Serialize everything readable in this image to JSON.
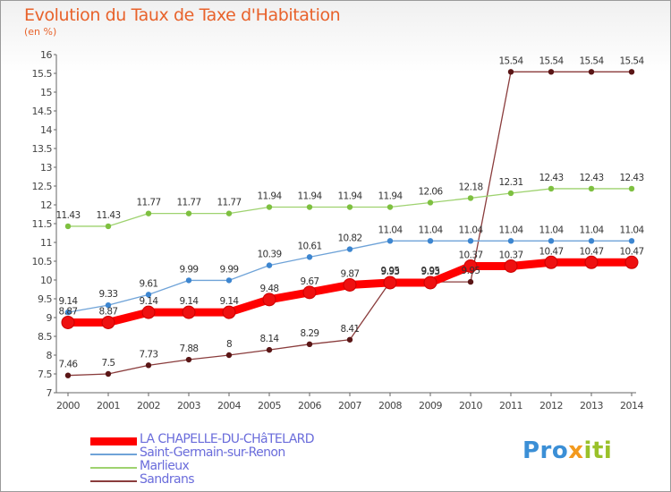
{
  "header": {
    "title": "Evolution du Taux de Taxe d'Habitation",
    "subtitle": "(en %)"
  },
  "brand": {
    "part1": "Pro",
    "part2": "x",
    "part3": "iti"
  },
  "chart_data": {
    "type": "line",
    "title": "Evolution du Taux de Taxe d'Habitation",
    "ylabel": "(en %)",
    "xlabel": "",
    "x": [
      2000,
      2001,
      2002,
      2003,
      2004,
      2005,
      2006,
      2007,
      2008,
      2009,
      2010,
      2011,
      2012,
      2013,
      2014
    ],
    "ylim": [
      7,
      16
    ],
    "yticks": [
      7,
      7.5,
      8,
      8.5,
      9,
      9.5,
      10,
      10.5,
      11,
      11.5,
      12,
      12.5,
      13,
      13.5,
      14,
      14.5,
      15,
      15.5,
      16
    ],
    "grid": false,
    "legend": "bottom-left",
    "series": [
      {
        "name": "LA CHAPELLE-DU-CHâTELARD",
        "color": "#ff0000",
        "marker": "#ee1010",
        "values": [
          8.87,
          8.87,
          9.14,
          9.14,
          9.14,
          9.48,
          9.67,
          9.87,
          9.93,
          9.93,
          10.37,
          10.37,
          10.47,
          10.47,
          10.47
        ],
        "labels": [
          "8.87",
          "8.87",
          "9.14",
          "9.14",
          "9.14",
          "9.48",
          "9.67",
          "9.87",
          "9.93",
          "9.93",
          "10.37",
          "10.37",
          "10.47",
          "10.47",
          "10.47"
        ]
      },
      {
        "name": "Saint-Germain-sur-Renon",
        "color": "#6fa3d8",
        "marker": "#3d86d0",
        "values": [
          9.14,
          9.33,
          9.61,
          9.99,
          9.99,
          10.39,
          10.61,
          10.82,
          11.04,
          11.04,
          11.04,
          11.04,
          11.04,
          11.04,
          11.04
        ],
        "labels": [
          "9.14",
          "9.33",
          "9.61",
          "9.99",
          "9.99",
          "10.39",
          "10.61",
          "10.82",
          "11.04",
          "11.04",
          "11.04",
          "11.04",
          "11.04",
          "11.04",
          "11.04"
        ]
      },
      {
        "name": "Marlieux",
        "color": "#9ed26f",
        "marker": "#7ec040",
        "values": [
          11.43,
          11.43,
          11.77,
          11.77,
          11.77,
          11.94,
          11.94,
          11.94,
          11.94,
          12.06,
          12.18,
          12.31,
          12.43,
          12.43,
          12.43
        ],
        "labels": [
          "11.43",
          "11.43",
          "11.77",
          "11.77",
          "11.77",
          "11.94",
          "11.94",
          "11.94",
          "11.94",
          "12.06",
          "12.18",
          "12.31",
          "12.43",
          "12.43",
          "12.43"
        ]
      },
      {
        "name": "Sandrans",
        "color": "#8a3c3c",
        "marker": "#5a1616",
        "values": [
          7.46,
          7.5,
          7.73,
          7.88,
          8,
          8.14,
          8.29,
          8.41,
          9.95,
          9.95,
          9.95,
          15.54,
          15.54,
          15.54,
          15.54
        ],
        "labels": [
          "7.46",
          "7.5",
          "7.73",
          "7.88",
          "8",
          "8.14",
          "8.29",
          "8.41",
          "9.95",
          "9.95",
          "9.95",
          "15.54",
          "15.54",
          "15.54",
          "15.54"
        ]
      }
    ]
  }
}
